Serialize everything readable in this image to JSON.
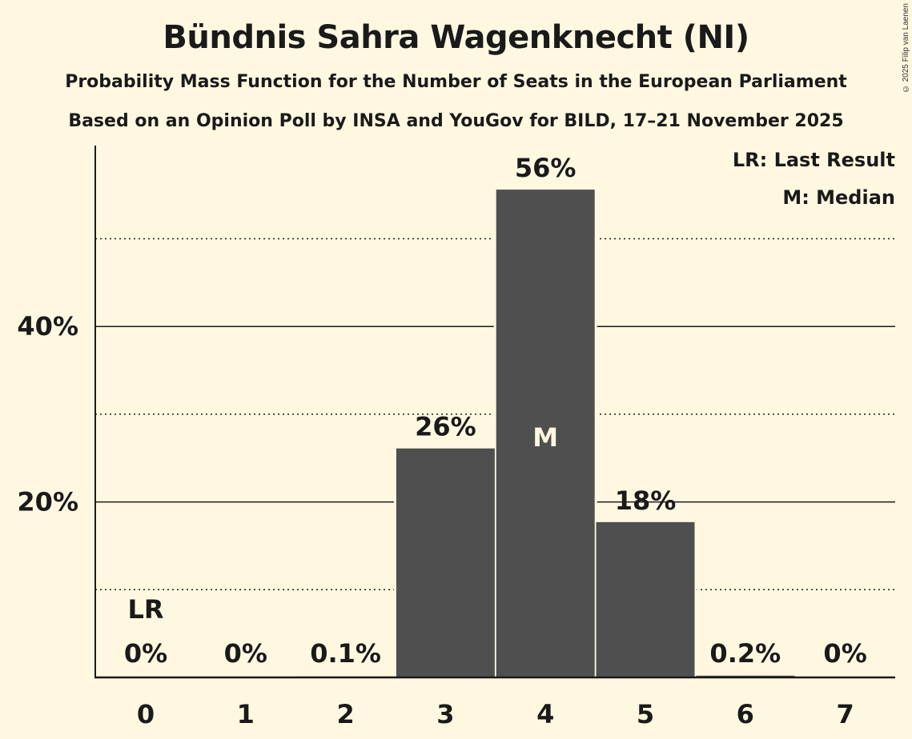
{
  "title": "Bündnis Sahra Wagenknecht (NI)",
  "subtitle1": "Probability Mass Function for the Number of Seats in the European Parliament",
  "subtitle2": "Based on an Opinion Poll by INSA and YouGov for BILD, 17–21 November 2025",
  "copyright": "© 2025 Filip van Laenen",
  "legend": {
    "lr": "LR: Last Result",
    "m": "M: Median"
  },
  "colors": {
    "background": "#fff8e1",
    "bar": "#4f4f4f",
    "text": "#1a1a1a",
    "median_text": "#fff8e1"
  },
  "chart_data": {
    "type": "bar",
    "title": "Bündnis Sahra Wagenknecht (NI)",
    "subtitle": "Probability Mass Function for the Number of Seats in the European Parliament",
    "xlabel": "",
    "ylabel": "",
    "categories": [
      "0",
      "1",
      "2",
      "3",
      "4",
      "5",
      "6",
      "7"
    ],
    "values": [
      0,
      0,
      0.1,
      26,
      56,
      18,
      0.2,
      0
    ],
    "labels": [
      "0%",
      "0%",
      "0.1%",
      "26%",
      "56%",
      "18%",
      "0.2%",
      "0%"
    ],
    "value_precise": [
      0,
      0,
      0.1,
      26.1,
      55.6,
      17.7,
      0.2,
      0
    ],
    "ylim": [
      0,
      60
    ],
    "yticks": [
      20,
      40
    ],
    "ytick_labels": [
      "20%",
      "40%"
    ],
    "minor_gridlines": [
      10,
      30,
      50
    ],
    "grid": true,
    "last_result_seat": 0,
    "last_result_label": "LR",
    "median_seat": 4,
    "median_label": "M",
    "legend_position": "top-right"
  }
}
